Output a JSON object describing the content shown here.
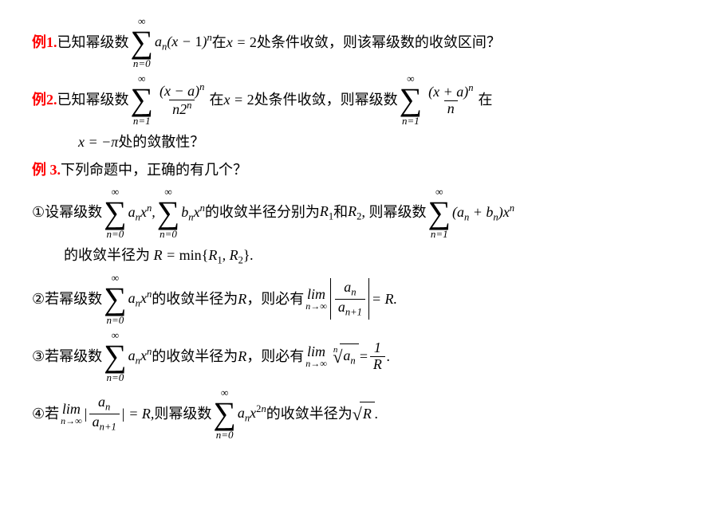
{
  "colors": {
    "accent": "#ff0000",
    "text": "#000000",
    "bg": "#ffffff"
  },
  "ex1": {
    "label": "例1.",
    "t1": "已知幂级数",
    "sum_top": "∞",
    "sum_bot": "n=0",
    "term": "aₙ(x − 1)ⁿ",
    "t2": "在",
    "cond": "x = 2",
    "t3": "处条件收敛，则该幂级数的收敛区间？"
  },
  "ex2": {
    "label": "例2.",
    "t1": "已知幂级数",
    "sum1_top": "∞",
    "sum1_bot": "n=1",
    "frac1_num": "(x − a)ⁿ",
    "frac1_den": "n2ⁿ",
    "t2": "在",
    "cond": "x = 2",
    "t3": "处条件收敛，则幂级数",
    "sum2_top": "∞",
    "sum2_bot": "n=1",
    "frac2_num": "(x + a)ⁿ",
    "frac2_den": "n",
    "t4": "在",
    "line2_a": "x = −π",
    "line2_b": "处的敛散性？"
  },
  "ex3": {
    "label": "例 3.",
    "t1": "下列命题中，正确的有几个？"
  },
  "p1": {
    "circ": "①",
    "t1": "设幂级数",
    "sumA_top": "∞",
    "sumA_bot": "n=0",
    "termA": "aₙxⁿ",
    "comma": ",",
    "sumB_top": "∞",
    "sumB_bot": "n=0",
    "termB": "bₙxⁿ",
    "t2": "的收敛半径分别为",
    "r1": "R₁",
    "t3": "和",
    "r2": "R₂",
    "t4": ", 则幂级数",
    "sumC_top": "∞",
    "sumC_bot": "n=1",
    "termC": "(aₙ + bₙ)xⁿ",
    "line2": "的收敛半径为 R = min{R₁, R₂}."
  },
  "p2": {
    "circ": "②",
    "t1": "若幂级数",
    "sum_top": "∞",
    "sum_bot": "n=0",
    "term": "aₙxⁿ",
    "t2": "的收敛半径为",
    "R": "R",
    "t3": "，则必有",
    "lim_top": "lim",
    "lim_bot": "n→∞",
    "frac_num": "aₙ",
    "frac_den": "aₙ₊₁",
    "eq": "= R."
  },
  "p3": {
    "circ": "③",
    "t1": "若幂级数",
    "sum_top": "∞",
    "sum_bot": "n=0",
    "term": "aₙxⁿ",
    "t2": "的收敛半径为",
    "R": "R",
    "t3": "，则必有",
    "lim_top": "lim",
    "lim_bot": "n→∞",
    "root_deg": "n",
    "root_rad": "aₙ",
    "eq": "=",
    "frac_num": "1",
    "frac_den": "R",
    "dot": "."
  },
  "p4": {
    "circ": "④",
    "t1": "若",
    "lim_top": "lim",
    "lim_bot": "n→∞",
    "bar": "|",
    "frac_num": "aₙ",
    "frac_den": "aₙ₊₁",
    "eqR": "| = R,",
    "t2": "则幂级数",
    "sum_top": "∞",
    "sum_bot": "n=0",
    "term": "aₙx²ⁿ",
    "t3": "的收敛半径为",
    "root_rad": "R",
    "dot": "."
  }
}
